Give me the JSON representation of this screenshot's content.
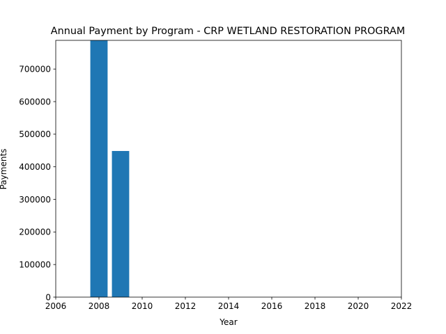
{
  "chart_data": {
    "type": "bar",
    "title": "Annual Payment by Program - CRP WETLAND RESTORATION PROGRAM",
    "xlabel": "Year",
    "ylabel": "Payments",
    "x": [
      2008,
      2009
    ],
    "values": [
      788000,
      448500
    ],
    "bar_color": "#1f77b4",
    "xlim": [
      2006,
      2022
    ],
    "ylim": [
      0,
      788000
    ],
    "xticks": [
      2006,
      2008,
      2010,
      2012,
      2014,
      2016,
      2018,
      2020,
      2022
    ],
    "yticks": [
      0,
      100000,
      200000,
      300000,
      400000,
      500000,
      600000,
      700000
    ],
    "grid": false,
    "legend": "none"
  }
}
